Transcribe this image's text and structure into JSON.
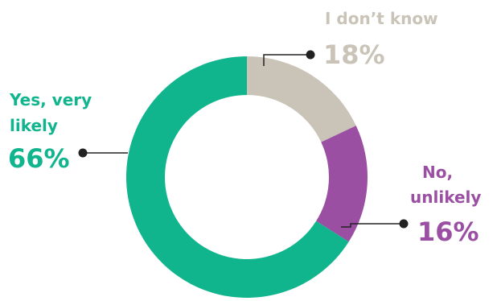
{
  "chart_data": {
    "type": "pie",
    "variant": "donut",
    "title": "",
    "categories": [
      "I don’t know",
      "No, unlikely",
      "Yes, very likely"
    ],
    "values": [
      18,
      16,
      66
    ],
    "value_labels": [
      "18%",
      "16%",
      "66%"
    ],
    "colors": [
      "#c9c3b8",
      "#9b4fa3",
      "#10b58e"
    ],
    "legend": "none"
  },
  "labels": {
    "dont_know": {
      "line1": "I don’t know",
      "pct": "18%"
    },
    "unlikely": {
      "line1": "No,",
      "line2": "unlikely",
      "pct": "16%"
    },
    "likely": {
      "line1": "Yes, very",
      "line2": "likely",
      "pct": "66%"
    }
  }
}
